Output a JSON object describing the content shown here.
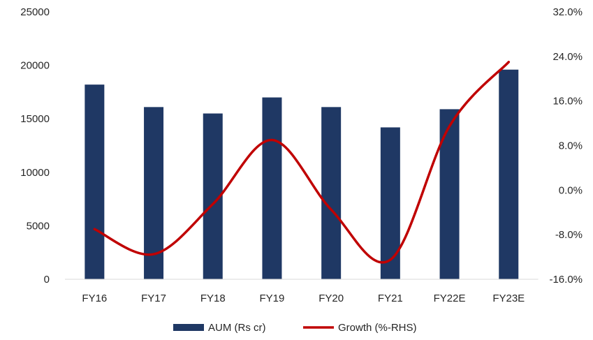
{
  "chart_data": {
    "type": "bar",
    "categories": [
      "FY16",
      "FY17",
      "FY18",
      "FY19",
      "FY20",
      "FY21",
      "FY22E",
      "FY23E"
    ],
    "series": [
      {
        "name": "AUM (Rs cr)",
        "type": "bar",
        "axis": "left",
        "color": "#1f3864",
        "values": [
          18200,
          16100,
          15500,
          17000,
          16100,
          14200,
          15900,
          19600
        ]
      },
      {
        "name": "Growth (%-RHS)",
        "type": "line",
        "axis": "right",
        "color": "#c00000",
        "values": [
          -7.0,
          -11.5,
          -2.5,
          9.0,
          -3.5,
          -12.5,
          11.5,
          23.0
        ]
      }
    ],
    "y_left": {
      "range": [
        0,
        25000
      ],
      "ticks": [
        "0",
        "5000",
        "10000",
        "15000",
        "20000",
        "25000"
      ]
    },
    "y_right": {
      "range": [
        -16,
        32
      ],
      "ticks": [
        "-16.0%",
        "-8.0%",
        "0.0%",
        "8.0%",
        "16.0%",
        "24.0%",
        "32.0%"
      ]
    },
    "grid": false,
    "legend": "bottom"
  }
}
